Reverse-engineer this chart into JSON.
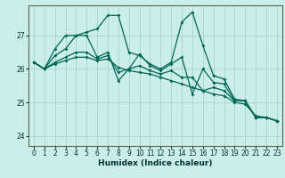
{
  "xlabel": "Humidex (Indice chaleur)",
  "background_color": "#cceee8",
  "grid_color": "#aad8d0",
  "line_color": "#006655",
  "xlim": [
    -0.5,
    23.5
  ],
  "ylim": [
    23.7,
    27.9
  ],
  "yticks": [
    24,
    25,
    26,
    27
  ],
  "xticks": [
    0,
    1,
    2,
    3,
    4,
    5,
    6,
    7,
    8,
    9,
    10,
    11,
    12,
    13,
    14,
    15,
    16,
    17,
    18,
    19,
    20,
    21,
    22,
    23
  ],
  "series": [
    [
      26.2,
      26.0,
      26.6,
      27.0,
      27.0,
      27.1,
      27.2,
      27.6,
      27.6,
      26.5,
      26.4,
      26.15,
      26.0,
      26.2,
      27.4,
      27.7,
      26.7,
      25.8,
      25.7,
      25.1,
      25.05,
      24.55,
      24.55,
      24.45
    ],
    [
      26.2,
      26.0,
      26.4,
      26.6,
      27.0,
      27.0,
      26.35,
      26.5,
      25.65,
      26.0,
      26.45,
      26.1,
      25.95,
      26.15,
      26.35,
      25.25,
      26.0,
      25.6,
      25.55,
      25.05,
      25.05,
      24.55,
      24.55,
      24.45
    ],
    [
      26.2,
      26.0,
      26.2,
      26.35,
      26.5,
      26.5,
      26.3,
      26.4,
      25.9,
      26.0,
      26.1,
      25.95,
      25.85,
      25.95,
      25.75,
      25.75,
      25.35,
      25.45,
      25.35,
      25.05,
      25.05,
      24.55,
      24.55,
      24.45
    ],
    [
      26.2,
      26.0,
      26.15,
      26.25,
      26.35,
      26.35,
      26.25,
      26.3,
      26.05,
      25.95,
      25.9,
      25.85,
      25.75,
      25.65,
      25.55,
      25.45,
      25.35,
      25.25,
      25.2,
      25.0,
      24.95,
      24.6,
      24.55,
      24.45
    ]
  ]
}
